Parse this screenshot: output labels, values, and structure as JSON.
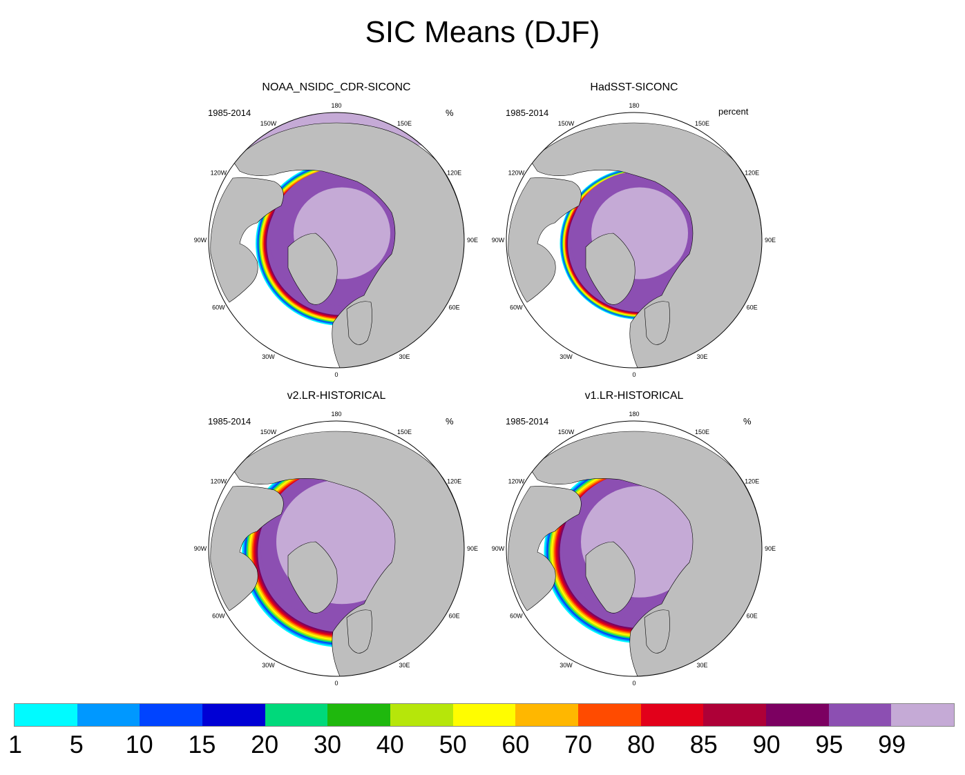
{
  "title": "SIC Means (DJF)",
  "panels": [
    {
      "title": "NOAA_NSIDC_CDR-SICONC",
      "period": "1985-2014",
      "units": "%",
      "ice_extent": "obs"
    },
    {
      "title": "HadSST-SICONC",
      "period": "1985-2014",
      "units": "percent",
      "ice_extent": "hadsst"
    },
    {
      "title": "v2.LR-HISTORICAL",
      "period": "1985-2014",
      "units": "%",
      "ice_extent": "v2"
    },
    {
      "title": "v1.LR-HISTORICAL",
      "period": "1985-2014",
      "units": "%",
      "ice_extent": "v1"
    }
  ],
  "longitude_labels": [
    "180",
    "150E",
    "120E",
    "90E",
    "60E",
    "30E",
    "0",
    "30W",
    "60W",
    "90W",
    "120W",
    "150W"
  ],
  "colorbar": {
    "labels": [
      "1",
      "5",
      "10",
      "15",
      "20",
      "30",
      "40",
      "50",
      "60",
      "70",
      "80",
      "85",
      "90",
      "95",
      "99"
    ],
    "colors": [
      "#00fbff",
      "#0098ff",
      "#0044ff",
      "#0000d5",
      "#00d97b",
      "#1fb80d",
      "#b6e60a",
      "#fffd00",
      "#ffb700",
      "#ff4b00",
      "#e2001a",
      "#ae0037",
      "#7c0061",
      "#8c4fb2",
      "#c5aad6"
    ]
  },
  "land_color": "#bebebe",
  "ocean_color": "#ffffff"
}
